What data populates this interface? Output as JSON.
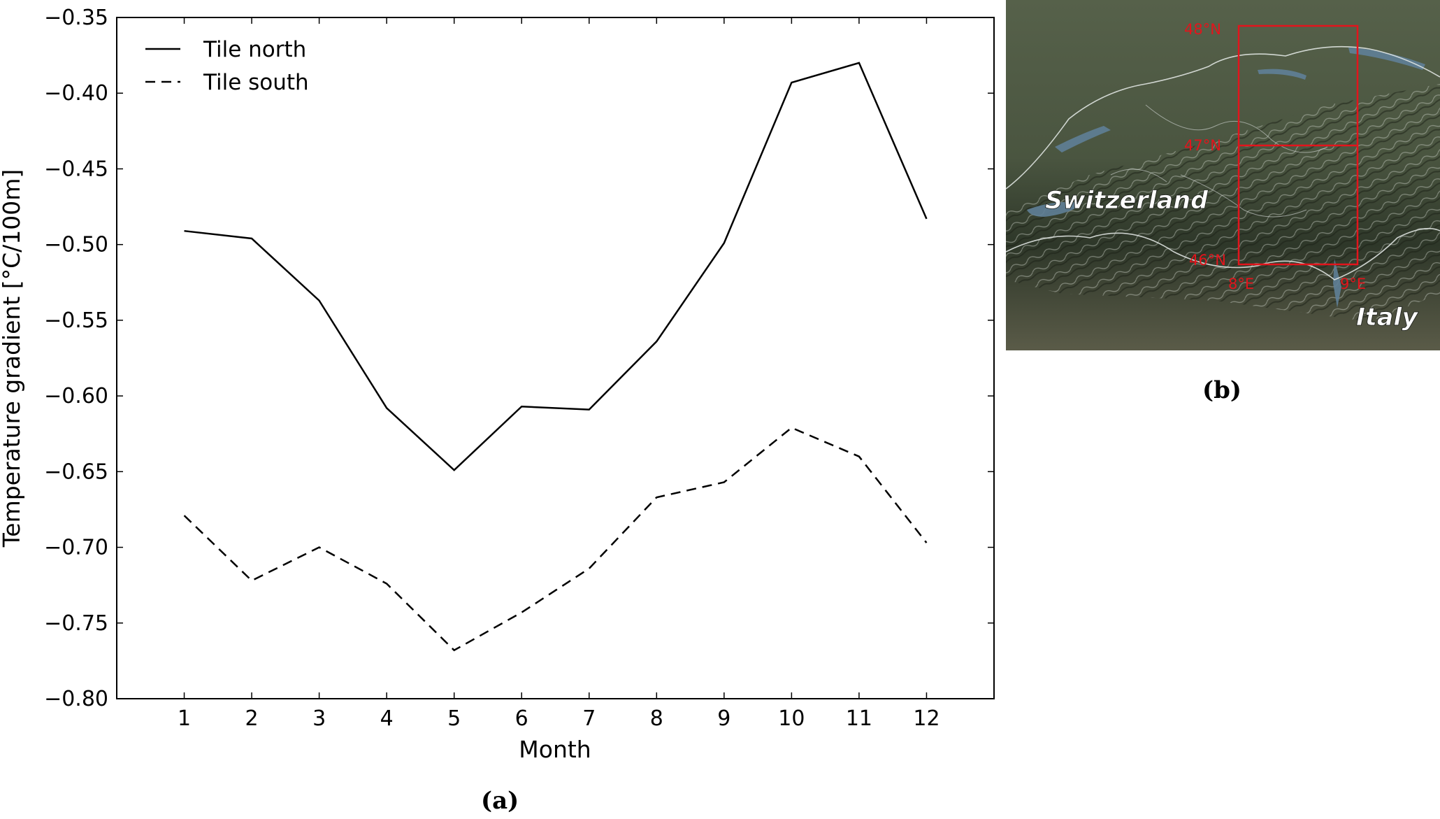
{
  "panels": {
    "a_label": "(a)",
    "b_label": "(b)"
  },
  "chart_data": {
    "type": "line",
    "title": "",
    "xlabel": "Month",
    "ylabel": "Temperature gradient [°C/100m]",
    "x": [
      1,
      2,
      3,
      4,
      5,
      6,
      7,
      8,
      9,
      10,
      11,
      12
    ],
    "xticks": [
      "1",
      "2",
      "3",
      "4",
      "5",
      "6",
      "7",
      "8",
      "9",
      "10",
      "11",
      "12"
    ],
    "xlim": [
      0,
      13
    ],
    "ylim": [
      -0.8,
      -0.35
    ],
    "yticks": [
      "−0.80",
      "−0.75",
      "−0.70",
      "−0.65",
      "−0.60",
      "−0.55",
      "−0.50",
      "−0.45",
      "−0.40",
      "−0.35"
    ],
    "ytick_values": [
      -0.8,
      -0.75,
      -0.7,
      -0.65,
      -0.6,
      -0.55,
      -0.5,
      -0.45,
      -0.4,
      -0.35
    ],
    "grid": false,
    "legend_position": "top-left",
    "series": [
      {
        "name": "Tile north",
        "style": "solid",
        "color": "#000000",
        "values": [
          -0.491,
          -0.496,
          -0.537,
          -0.608,
          -0.649,
          -0.607,
          -0.609,
          -0.564,
          -0.499,
          -0.393,
          -0.38,
          -0.483
        ]
      },
      {
        "name": "Tile south",
        "style": "dashed",
        "color": "#000000",
        "values": [
          -0.679,
          -0.722,
          -0.7,
          -0.724,
          -0.768,
          -0.743,
          -0.714,
          -0.667,
          -0.657,
          -0.621,
          -0.64,
          -0.697
        ]
      }
    ]
  },
  "map": {
    "labels": {
      "country_north": "Switzerland",
      "country_south": "Italy"
    },
    "grid_labels": {
      "lat_48": "48°N",
      "lat_47": "47°N",
      "lat_46": "46°N",
      "lon_8": "8°E",
      "lon_9": "9°E"
    },
    "colors": {
      "grid": "#e3141c",
      "terrain_dark": "#2b3326",
      "terrain_light": "#5c6a52",
      "lake": "#5f7f97"
    }
  }
}
